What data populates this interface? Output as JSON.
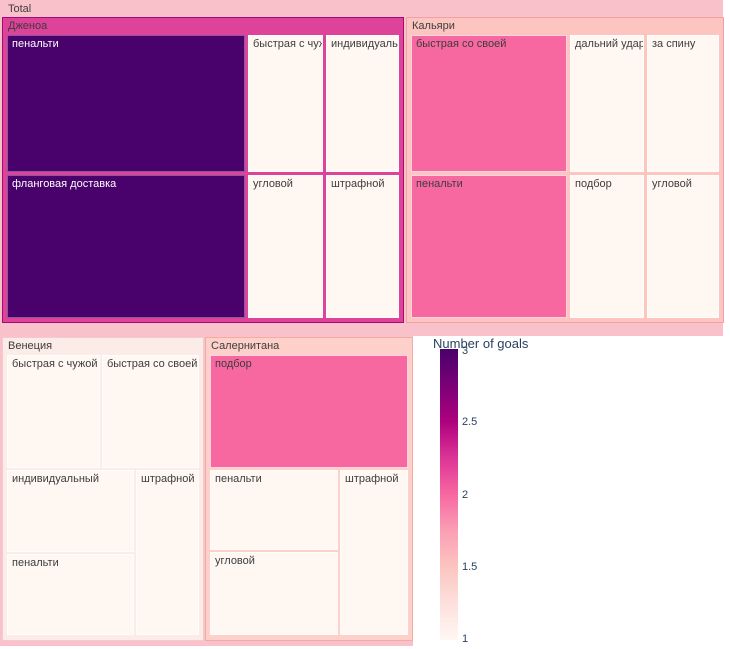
{
  "treemap": {
    "root_label": "Total",
    "sections": [
      {
        "label": "Дженоа",
        "header_color": "#de4299",
        "cells": [
          {
            "label": "пенальти",
            "goals": 3
          },
          {
            "label": "быстрая с чужой",
            "goals": 1
          },
          {
            "label": "индивидуальный",
            "goals": 1
          },
          {
            "label": "фланговая доставка",
            "goals": 3
          },
          {
            "label": "угловой",
            "goals": 1
          },
          {
            "label": "штрафной",
            "goals": 1
          }
        ]
      },
      {
        "label": "Кальяри",
        "header_color": "#fcc5c0",
        "cells": [
          {
            "label": "быстрая со своей",
            "goals": 2
          },
          {
            "label": "дальний удар",
            "goals": 1
          },
          {
            "label": "за спину",
            "goals": 1
          },
          {
            "label": "пенальти",
            "goals": 2
          },
          {
            "label": "подбор",
            "goals": 1
          },
          {
            "label": "угловой",
            "goals": 1
          }
        ]
      },
      {
        "label": "Венеция",
        "header_color": "#fcece7",
        "cells": [
          {
            "label": "быстрая с чужой",
            "goals": 1
          },
          {
            "label": "быстрая со своей",
            "goals": 1
          },
          {
            "label": "индивидуальный",
            "goals": 1
          },
          {
            "label": "штрафной",
            "goals": 1
          },
          {
            "label": "пенальти",
            "goals": 1
          }
        ]
      },
      {
        "label": "Салернитана",
        "header_color": "#fdd0ca",
        "cells": [
          {
            "label": "подбор",
            "goals": 2
          },
          {
            "label": "пенальти",
            "goals": 1
          },
          {
            "label": "угловой",
            "goals": 1
          },
          {
            "label": "штрафной",
            "goals": 1
          }
        ]
      }
    ]
  },
  "colorbar": {
    "title": "Number of goals",
    "ticks": [
      "3",
      "2.5",
      "2",
      "1.5",
      "1"
    ],
    "min": 1,
    "max": 3
  },
  "colors": {
    "goals_1": "#fff7f2",
    "goals_2": "#f768a1",
    "goals_3": "#49016b",
    "total_background": "#f9c2ca",
    "text_dark": "#3d3d3d",
    "axis_text": "#2a3f5f"
  },
  "chart_data": {
    "type": "treemap",
    "title": "",
    "colorbar_title": "Number of goals",
    "color_scale": {
      "name": "RdPu",
      "min": 1,
      "max": 3
    },
    "root": "Total",
    "groups": [
      {
        "name": "Дженоа",
        "children": [
          {
            "label": "пенальти",
            "goals": 3
          },
          {
            "label": "фланговая доставка",
            "goals": 3
          },
          {
            "label": "быстрая с чужой",
            "goals": 1
          },
          {
            "label": "индивидуальный",
            "goals": 1
          },
          {
            "label": "угловой",
            "goals": 1
          },
          {
            "label": "штрафной",
            "goals": 1
          }
        ]
      },
      {
        "name": "Кальяри",
        "children": [
          {
            "label": "быстрая со своей",
            "goals": 2
          },
          {
            "label": "пенальти",
            "goals": 2
          },
          {
            "label": "дальний удар",
            "goals": 1
          },
          {
            "label": "за спину",
            "goals": 1
          },
          {
            "label": "подбор",
            "goals": 1
          },
          {
            "label": "угловой",
            "goals": 1
          }
        ]
      },
      {
        "name": "Венеция",
        "children": [
          {
            "label": "быстрая с чужой",
            "goals": 1
          },
          {
            "label": "быстрая со своей",
            "goals": 1
          },
          {
            "label": "индивидуальный",
            "goals": 1
          },
          {
            "label": "штрафной",
            "goals": 1
          },
          {
            "label": "пенальти",
            "goals": 1
          }
        ]
      },
      {
        "name": "Салернитана",
        "children": [
          {
            "label": "подбор",
            "goals": 2
          },
          {
            "label": "пенальти",
            "goals": 1
          },
          {
            "label": "угловой",
            "goals": 1
          },
          {
            "label": "штрафной",
            "goals": 1
          }
        ]
      }
    ]
  }
}
